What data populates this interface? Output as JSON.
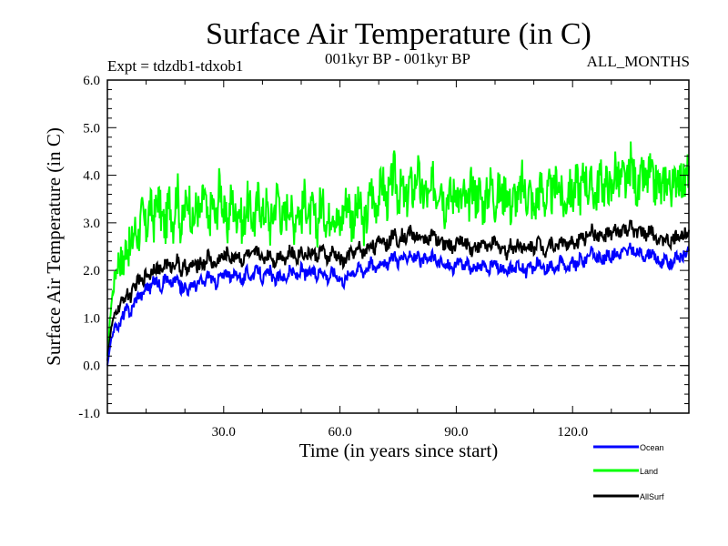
{
  "chart_data": {
    "type": "line",
    "title": "Surface Air Temperature (in C)",
    "subtitle_left": "Expt = tdzdb1-tdxob1",
    "subtitle_center": "001kyr BP - 001kyr BP",
    "subtitle_right": "ALL_MONTHS",
    "xlabel": "Time (in years since start)",
    "ylabel": "Surface Air Temperature (in C)",
    "xlim": [
      0,
      150
    ],
    "ylim": [
      -1.0,
      6.0
    ],
    "x_ticks": [
      30,
      60,
      90,
      120
    ],
    "x_tick_labels": [
      "30.0",
      "60.0",
      "90.0",
      "120.0"
    ],
    "y_ticks": [
      -1,
      0,
      1,
      2,
      3,
      4,
      5,
      6
    ],
    "y_tick_labels": [
      "-1.0",
      "0.0",
      "1.0",
      "2.0",
      "3.0",
      "4.0",
      "5.0",
      "6.0"
    ],
    "reference_line": {
      "y": 0.0,
      "style": "dashed"
    },
    "grid": false,
    "legend_position": "bottom-right",
    "x_step": 1,
    "series": [
      {
        "name": "Ocean",
        "color": "#0000ff",
        "values": [
          0.0,
          0.55,
          0.85,
          0.8,
          1.05,
          1.2,
          1.1,
          1.35,
          1.5,
          1.45,
          1.7,
          1.6,
          1.8,
          1.75,
          1.65,
          1.9,
          1.7,
          1.75,
          1.85,
          1.6,
          1.7,
          1.55,
          1.75,
          1.65,
          1.8,
          1.7,
          1.95,
          1.8,
          1.7,
          1.9,
          1.85,
          2.0,
          1.8,
          1.95,
          1.9,
          1.75,
          2.0,
          1.85,
          1.95,
          2.05,
          1.8,
          1.9,
          2.0,
          1.75,
          1.85,
          1.9,
          1.8,
          2.0,
          1.95,
          1.85,
          2.05,
          1.9,
          1.95,
          2.0,
          1.85,
          2.05,
          1.95,
          1.8,
          2.0,
          1.9,
          1.85,
          1.75,
          1.9,
          2.0,
          1.95,
          2.1,
          1.95,
          2.05,
          2.2,
          2.0,
          2.15,
          2.25,
          2.05,
          2.2,
          2.35,
          2.15,
          2.3,
          2.2,
          2.4,
          2.25,
          2.3,
          2.15,
          2.25,
          2.2,
          2.35,
          2.1,
          2.2,
          2.05,
          2.15,
          2.0,
          2.1,
          2.25,
          2.05,
          2.15,
          1.95,
          2.1,
          2.0,
          2.2,
          1.95,
          2.1,
          2.15,
          2.0,
          2.05,
          1.9,
          2.1,
          2.0,
          2.15,
          2.05,
          1.95,
          2.1,
          2.0,
          2.2,
          2.05,
          1.95,
          2.15,
          2.1,
          2.0,
          2.25,
          2.1,
          2.0,
          2.2,
          2.05,
          2.3,
          2.15,
          2.35,
          2.4,
          2.25,
          2.3,
          2.2,
          2.35,
          2.25,
          2.4,
          2.3,
          2.45,
          2.35,
          2.5,
          2.3,
          2.4,
          2.35,
          2.25,
          2.4,
          2.3,
          2.2,
          2.15,
          2.25,
          2.1,
          2.2,
          2.3,
          2.25,
          2.35,
          2.4
        ]
      },
      {
        "name": "Land",
        "color": "#00ff00",
        "values": [
          0.2,
          1.3,
          1.9,
          2.3,
          2.1,
          2.6,
          2.4,
          2.9,
          2.7,
          3.2,
          2.8,
          3.4,
          3.0,
          3.6,
          3.1,
          2.9,
          3.5,
          3.0,
          3.8,
          2.8,
          3.3,
          3.6,
          2.9,
          3.4,
          3.1,
          3.7,
          2.8,
          3.5,
          3.0,
          3.9,
          3.2,
          2.9,
          3.6,
          3.1,
          3.4,
          2.8,
          3.5,
          3.2,
          3.0,
          3.6,
          3.1,
          3.4,
          2.9,
          3.3,
          3.7,
          3.0,
          3.2,
          3.5,
          2.9,
          3.4,
          3.1,
          3.6,
          3.0,
          3.3,
          2.8,
          3.5,
          3.2,
          3.0,
          3.4,
          3.1,
          2.9,
          3.3,
          3.6,
          3.0,
          3.2,
          3.4,
          2.9,
          3.1,
          3.8,
          3.3,
          3.6,
          3.9,
          3.4,
          3.7,
          4.1,
          3.5,
          3.8,
          3.3,
          3.9,
          3.6,
          4.2,
          3.5,
          3.7,
          3.4,
          3.9,
          3.6,
          4.0,
          3.3,
          3.7,
          3.5,
          3.8,
          3.4,
          3.6,
          3.2,
          3.9,
          3.5,
          3.7,
          3.3,
          3.6,
          3.9,
          3.4,
          3.7,
          3.5,
          3.8,
          3.3,
          3.6,
          3.4,
          3.9,
          3.5,
          3.7,
          3.2,
          3.6,
          3.8,
          3.4,
          3.7,
          3.5,
          4.0,
          3.6,
          3.3,
          3.8,
          3.5,
          3.9,
          3.6,
          4.1,
          3.7,
          3.8,
          3.5,
          4.0,
          3.7,
          3.9,
          3.6,
          4.2,
          3.8,
          4.0,
          3.7,
          4.3,
          3.9,
          3.6,
          4.0,
          3.8,
          4.1,
          3.7,
          3.9,
          3.6,
          4.0,
          3.8,
          3.7,
          4.1,
          3.9,
          3.8,
          4.2
        ]
      },
      {
        "name": "AllSurf",
        "color": "#000000",
        "values": [
          0.1,
          0.8,
          1.1,
          1.2,
          1.4,
          1.5,
          1.45,
          1.65,
          1.8,
          1.75,
          1.95,
          1.9,
          2.1,
          2.05,
          1.95,
          2.2,
          2.05,
          2.1,
          2.25,
          1.95,
          2.1,
          2.0,
          2.15,
          2.05,
          2.2,
          2.1,
          2.35,
          2.15,
          2.1,
          2.3,
          2.25,
          2.4,
          2.2,
          2.35,
          2.3,
          2.15,
          2.4,
          2.25,
          2.35,
          2.45,
          2.2,
          2.3,
          2.4,
          2.15,
          2.3,
          2.35,
          2.2,
          2.4,
          2.35,
          2.25,
          2.45,
          2.3,
          2.35,
          2.4,
          2.25,
          2.45,
          2.35,
          2.2,
          2.4,
          2.3,
          2.25,
          2.15,
          2.3,
          2.4,
          2.35,
          2.5,
          2.35,
          2.45,
          2.6,
          2.45,
          2.6,
          2.7,
          2.5,
          2.65,
          2.8,
          2.6,
          2.75,
          2.65,
          2.85,
          2.7,
          2.75,
          2.6,
          2.7,
          2.65,
          2.8,
          2.55,
          2.65,
          2.5,
          2.6,
          2.45,
          2.55,
          2.7,
          2.5,
          2.6,
          2.4,
          2.55,
          2.45,
          2.65,
          2.4,
          2.55,
          2.6,
          2.45,
          2.5,
          2.35,
          2.55,
          2.45,
          2.6,
          2.5,
          2.4,
          2.55,
          2.45,
          2.65,
          2.5,
          2.4,
          2.6,
          2.55,
          2.45,
          2.7,
          2.55,
          2.45,
          2.65,
          2.5,
          2.75,
          2.6,
          2.8,
          2.85,
          2.7,
          2.75,
          2.65,
          2.8,
          2.7,
          2.85,
          2.75,
          2.9,
          2.8,
          2.95,
          2.75,
          2.85,
          2.8,
          2.7,
          2.85,
          2.75,
          2.65,
          2.6,
          2.7,
          2.55,
          2.65,
          2.75,
          2.7,
          2.8,
          2.85
        ]
      }
    ]
  }
}
